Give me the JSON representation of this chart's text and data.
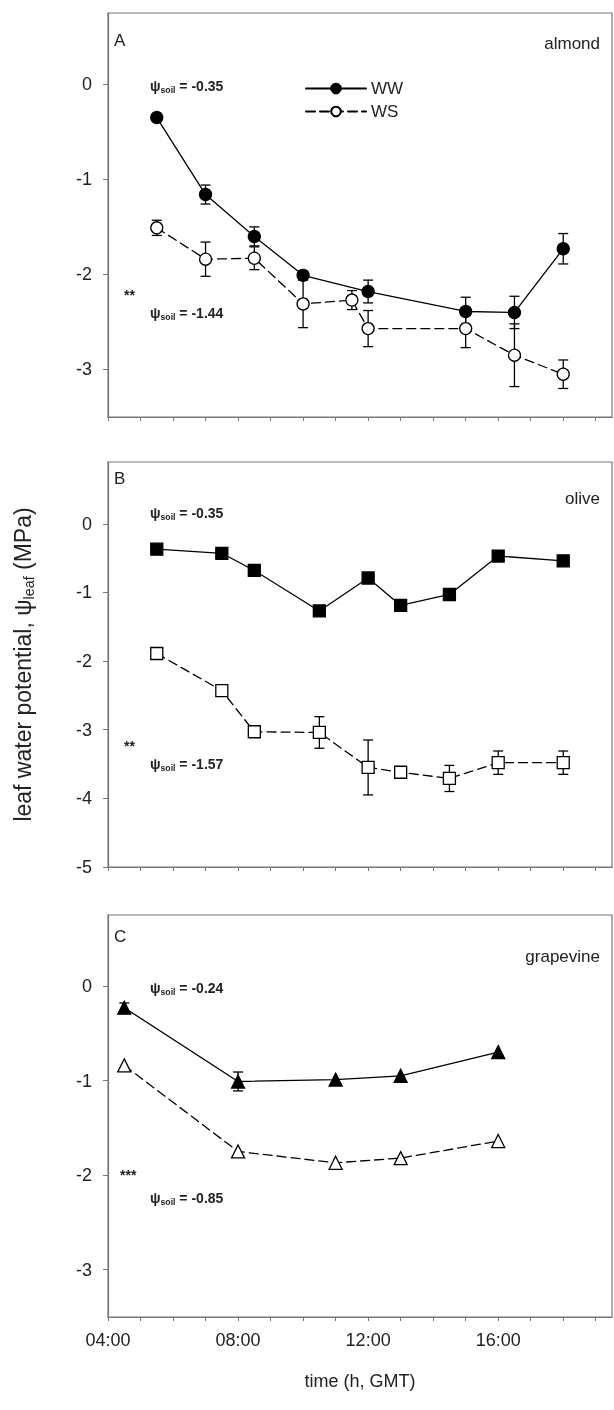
{
  "chart_data": [
    {
      "type": "line",
      "x": [
        5.5,
        7,
        8.5,
        10,
        12,
        15,
        16.5,
        18
      ],
      "xlim": [
        4,
        19.5
      ],
      "ylim": [
        -3.5,
        0.75
      ],
      "yticks": [
        0,
        -1,
        -2,
        -3
      ],
      "xticks": [
        {
          "value": 4,
          "label": null
        },
        {
          "value": 5,
          "label": null
        },
        {
          "value": 6,
          "label": null
        },
        {
          "value": 7,
          "label": null
        },
        {
          "value": 8,
          "label": null
        },
        {
          "value": 9,
          "label": null
        },
        {
          "value": 10,
          "label": null
        },
        {
          "value": 11,
          "label": null
        },
        {
          "value": 12,
          "label": null
        },
        {
          "value": 13,
          "label": null
        },
        {
          "value": 14,
          "label": null
        },
        {
          "value": 15,
          "label": null
        },
        {
          "value": 16,
          "label": null
        },
        {
          "value": 17,
          "label": null
        },
        {
          "value": 18,
          "label": null
        },
        {
          "value": 19,
          "label": null
        }
      ],
      "tick_labels": "y",
      "legend": "top",
      "marker": "circle",
      "annotations": [
        "A",
        "almond",
        "ψ$_{soil}$ = -0.35",
        "**",
        "ψ$_{soil}$ = -1.44"
      ],
      "series": [
        {
          "name": "WW",
          "color": "#000000",
          "line_style": "solid",
          "values": [
            -0.35,
            -1.16,
            -1.6,
            -2.01,
            -2.18,
            -2.39,
            -2.4,
            -1.73
          ],
          "errors": [
            null,
            0.1,
            0.1,
            null,
            0.12,
            0.15,
            0.17,
            0.16
          ]
        },
        {
          "name": "WS",
          "color": "#000000",
          "line_style": "dashed",
          "x": [
            5.5,
            7,
            8.5,
            10,
            11.5,
            12,
            15,
            16.5,
            18
          ],
          "values": [
            -1.51,
            -1.84,
            -1.83,
            -2.31,
            -2.27,
            -2.57,
            -2.57,
            -2.85,
            -3.05
          ],
          "errors": [
            0.08,
            0.18,
            0.12,
            0.25,
            0.1,
            0.19,
            0.2,
            0.33,
            0.15
          ]
        }
      ]
    },
    {
      "type": "line",
      "x": [
        5.5,
        7.5,
        8.5,
        10.5,
        12,
        13,
        14.5,
        16,
        18
      ],
      "xlim": [
        4,
        19.5
      ],
      "ylim": [
        -5,
        0.9
      ],
      "yticks": [
        0,
        -1,
        -2,
        -3,
        -4,
        -5
      ],
      "xticks": [
        {
          "value": 4,
          "label": null
        },
        {
          "value": 5,
          "label": null
        },
        {
          "value": 6,
          "label": null
        },
        {
          "value": 7,
          "label": null
        },
        {
          "value": 8,
          "label": null
        },
        {
          "value": 9,
          "label": null
        },
        {
          "value": 10,
          "label": null
        },
        {
          "value": 11,
          "label": null
        },
        {
          "value": 12,
          "label": null
        },
        {
          "value": 13,
          "label": null
        },
        {
          "value": 14,
          "label": null
        },
        {
          "value": 15,
          "label": null
        },
        {
          "value": 16,
          "label": null
        },
        {
          "value": 17,
          "label": null
        },
        {
          "value": 18,
          "label": null
        },
        {
          "value": 19,
          "label": null
        }
      ],
      "tick_labels": "y",
      "marker": "square",
      "ylabel": "leaf water potential, ψ$_{leaf}$ (MPa)",
      "annotations": [
        "B",
        "olive",
        "ψ$_{soil}$ = -0.35",
        "**",
        "ψ$_{soil}$ = -1.57"
      ],
      "series": [
        {
          "color": "#000000",
          "line_style": "solid",
          "values": [
            -0.37,
            -0.43,
            -0.68,
            -1.27,
            -0.79,
            -1.19,
            -1.03,
            -0.47,
            -0.54
          ],
          "errors": [
            null,
            null,
            null,
            null,
            null,
            null,
            null,
            null,
            0.07
          ]
        },
        {
          "color": "#000000",
          "line_style": "dashed",
          "values": [
            -1.89,
            -2.43,
            -3.03,
            -3.04,
            -3.55,
            -3.62,
            -3.71,
            -3.48,
            -3.48
          ],
          "errors": [
            null,
            null,
            null,
            0.23,
            0.4,
            null,
            0.19,
            0.17,
            0.17
          ]
        }
      ]
    },
    {
      "type": "line",
      "x": [
        4.5,
        8,
        11,
        13,
        16
      ],
      "xlim": [
        4,
        19.5
      ],
      "ylim": [
        -3.5,
        0.75
      ],
      "yticks": [
        0,
        -1,
        -2,
        -3
      ],
      "xticks": [
        {
          "value": 4,
          "label": "04:00"
        },
        {
          "value": 5,
          "label": null
        },
        {
          "value": 6,
          "label": null
        },
        {
          "value": 7,
          "label": null
        },
        {
          "value": 8,
          "label": "08:00"
        },
        {
          "value": 9,
          "label": null
        },
        {
          "value": 10,
          "label": null
        },
        {
          "value": 11,
          "label": null
        },
        {
          "value": 12,
          "label": "12:00"
        },
        {
          "value": 13,
          "label": null
        },
        {
          "value": 14,
          "label": null
        },
        {
          "value": 15,
          "label": null
        },
        {
          "value": 16,
          "label": "16:00"
        },
        {
          "value": 17,
          "label": null
        },
        {
          "value": 18,
          "label": null
        },
        {
          "value": 19,
          "label": null
        }
      ],
      "marker": "triangle",
      "xlabel": "time (h, GMT)",
      "annotations": [
        "C",
        "grapevine",
        "ψ$_{soil}$ = -0.24",
        "***",
        "ψ$_{soil}$ = -0.85"
      ],
      "series": [
        {
          "color": "#000000",
          "line_style": "solid",
          "values": [
            -0.23,
            -1.01,
            -0.99,
            -0.95,
            -0.7
          ],
          "errors": [
            0.05,
            0.1,
            null,
            null,
            null
          ]
        },
        {
          "color": "#000000",
          "line_style": "dashed",
          "values": [
            -0.84,
            -1.75,
            -1.87,
            -1.82,
            -1.64
          ]
        }
      ]
    }
  ]
}
